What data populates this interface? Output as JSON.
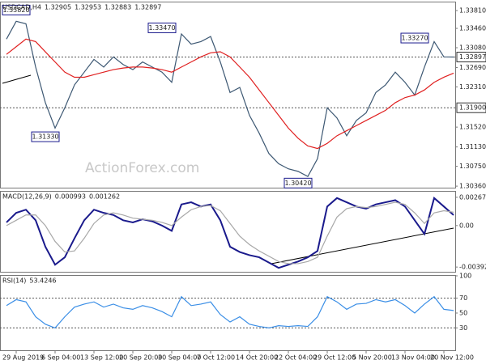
{
  "chart_data": [
    {
      "type": "line",
      "header": {
        "symbol": "USDCAD,H4",
        "ohlc": [
          1.32905,
          1.32953,
          1.32883,
          1.32897
        ]
      },
      "watermark": "ActionForex.com",
      "ylim": [
        1.3033,
        1.3397
      ],
      "yticks": [
        {
          "value": 1.3381,
          "label": "1.33810"
        },
        {
          "value": 1.3346,
          "label": "1.33460"
        },
        {
          "value": 1.3308,
          "label": "1.33080"
        },
        {
          "value": 1.3269,
          "label": "1.32690"
        },
        {
          "value": 1.3231,
          "label": "1.32310"
        },
        {
          "value": 1.3152,
          "label": "1.31520"
        },
        {
          "value": 1.3113,
          "label": "1.31130"
        },
        {
          "value": 1.3075,
          "label": "1.30750"
        },
        {
          "value": 1.3036,
          "label": "1.30360"
        }
      ],
      "levels": [
        {
          "value": 1.32897,
          "label": "1.32897"
        },
        {
          "value": 1.319,
          "label": "1.31900"
        }
      ],
      "annotations": [
        {
          "index": 1,
          "value": 1.3382,
          "label": "1.33820"
        },
        {
          "index": 16,
          "value": 1.3347,
          "label": "1.33470"
        },
        {
          "index": 4,
          "value": 1.3133,
          "label": "1.31330"
        },
        {
          "index": 30,
          "value": 1.3042,
          "label": "1.30420"
        },
        {
          "index": 42,
          "value": 1.3327,
          "label": "1.33270"
        }
      ],
      "series": [
        {
          "color": "#3d5873",
          "values": [
            1.3325,
            1.336,
            1.3355,
            1.327,
            1.32,
            1.315,
            1.319,
            1.3235,
            1.326,
            1.3285,
            1.327,
            1.329,
            1.3275,
            1.3265,
            1.328,
            1.327,
            1.326,
            1.324,
            1.3335,
            1.3315,
            1.332,
            1.333,
            1.328,
            1.322,
            1.323,
            1.3175,
            1.314,
            1.31,
            1.308,
            1.307,
            1.3065,
            1.3055,
            1.309,
            1.319,
            1.317,
            1.3135,
            1.3165,
            1.318,
            1.322,
            1.3235,
            1.326,
            1.324,
            1.3215,
            1.327,
            1.332,
            1.329,
            1.32897
          ]
        },
        {
          "color": "#e02020",
          "values": [
            1.3295,
            1.331,
            1.3325,
            1.332,
            1.33,
            1.328,
            1.326,
            1.325,
            1.325,
            1.3255,
            1.326,
            1.3265,
            1.3268,
            1.327,
            1.327,
            1.3268,
            1.3265,
            1.326,
            1.327,
            1.328,
            1.329,
            1.3298,
            1.33,
            1.329,
            1.327,
            1.325,
            1.3225,
            1.32,
            1.3175,
            1.315,
            1.313,
            1.3115,
            1.311,
            1.312,
            1.3135,
            1.3145,
            1.3155,
            1.3165,
            1.3175,
            1.3185,
            1.32,
            1.321,
            1.3215,
            1.3225,
            1.324,
            1.325,
            1.3258
          ]
        }
      ]
    },
    {
      "type": "line",
      "indicator": "MACD(12,26,9)",
      "readouts": [
        0.000993,
        0.001262
      ],
      "ylim": [
        -0.00437,
        0.0032
      ],
      "yticks": [
        0.002671,
        {
          "value": 0,
          "label": "0.00"
        },
        -0.003922
      ],
      "series": [
        {
          "color": "#1a1a8c",
          "values": [
            0.0003,
            0.0012,
            0.0015,
            0.0005,
            -0.002,
            -0.0037,
            -0.003,
            -0.0012,
            0.0005,
            0.0015,
            0.0012,
            0.001,
            0.0005,
            0.0003,
            0.0006,
            0.0004,
            0,
            -0.0005,
            0.002,
            0.0022,
            0.0018,
            0.002,
            0.0005,
            -0.002,
            -0.0025,
            -0.0028,
            -0.003,
            -0.0035,
            -0.004,
            -0.0037,
            -0.0034,
            -0.003,
            -0.0024,
            0.0018,
            0.0026,
            0.0022,
            0.0018,
            0.0016,
            0.002,
            0.0022,
            0.0024,
            0.0018,
            0.0005,
            -0.0008,
            0.0026,
            0.0018,
            0.000993
          ]
        },
        {
          "color": "#a8a8a8",
          "values": [
            0,
            0.0005,
            0.001,
            0.001,
            0,
            -0.0015,
            -0.0025,
            -0.0024,
            -0.0012,
            0.0002,
            0.001,
            0.0012,
            0.001,
            0.0007,
            0.0006,
            0.0005,
            0.0003,
            0,
            0.0008,
            0.0015,
            0.0018,
            0.0019,
            0.0014,
            0.0002,
            -0.001,
            -0.0018,
            -0.0024,
            -0.0029,
            -0.0034,
            -0.0036,
            -0.0036,
            -0.0034,
            -0.003,
            -0.001,
            0.0008,
            0.0016,
            0.0018,
            0.0017,
            0.0018,
            0.002,
            0.0022,
            0.002,
            0.0012,
            0.0002,
            0.0012,
            0.0014,
            0.001262
          ]
        }
      ]
    },
    {
      "type": "line",
      "indicator": "RSI(14)",
      "readouts": [
        53.4246
      ],
      "ylim": [
        0,
        100
      ],
      "yticks": [
        100,
        70,
        50,
        30
      ],
      "levels": [
        {
          "value": 70
        },
        {
          "value": 30
        }
      ],
      "categories": [
        null,
        "29 Aug 2019",
        null,
        null,
        null,
        "6 Sep 04:00",
        null,
        null,
        null,
        "13 Sep 12:00",
        null,
        null,
        null,
        "20 Sep 20:00",
        null,
        null,
        null,
        "30 Sep 04:00",
        null,
        null,
        null,
        "7 Oct 12:00",
        null,
        null,
        null,
        "14 Oct 20:00",
        null,
        null,
        null,
        "22 Oct 04:00",
        null,
        null,
        null,
        "29 Oct 12:00",
        null,
        null,
        null,
        "5 Nov 20:00",
        null,
        null,
        null,
        "13 Nov 04:00",
        null,
        null,
        null,
        "20 Nov 12:00",
        null
      ],
      "series": [
        {
          "color": "#3a8ee6",
          "values": [
            60,
            68,
            65,
            45,
            35,
            30,
            45,
            58,
            62,
            65,
            58,
            62,
            57,
            55,
            60,
            57,
            52,
            45,
            72,
            60,
            62,
            65,
            48,
            38,
            45,
            35,
            32,
            30,
            33,
            32,
            33,
            32,
            45,
            72,
            65,
            55,
            62,
            63,
            68,
            65,
            68,
            60,
            50,
            62,
            72,
            55,
            53.4246
          ]
        }
      ]
    }
  ]
}
